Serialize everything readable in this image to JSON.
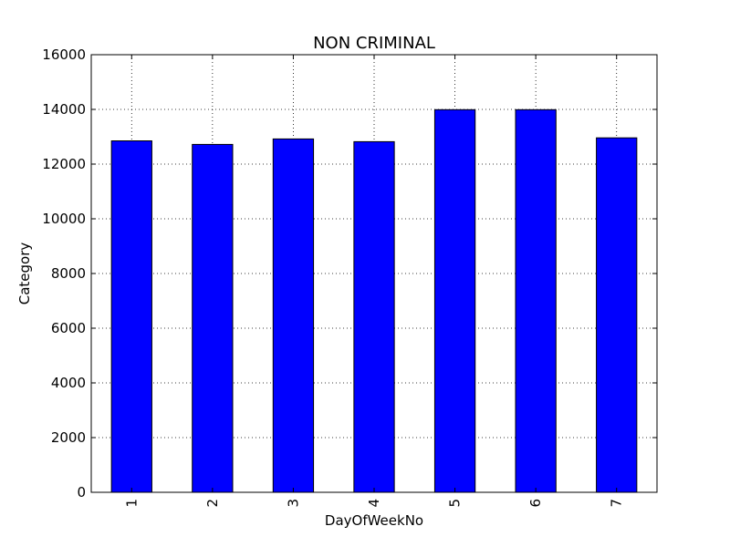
{
  "chart_data": {
    "type": "bar",
    "title": "NON CRIMINAL",
    "xlabel": "DayOfWeekNo",
    "ylabel": "Category",
    "categories": [
      "1",
      "2",
      "3",
      "4",
      "5",
      "6",
      "7"
    ],
    "values": [
      12850,
      12720,
      12920,
      12820,
      13990,
      13990,
      12960
    ],
    "ylim": [
      0,
      16000
    ],
    "yticks": [
      0,
      2000,
      4000,
      6000,
      8000,
      10000,
      12000,
      14000,
      16000
    ],
    "ytick_labels": [
      "0",
      "2000",
      "4000",
      "6000",
      "8000",
      "10000",
      "12000",
      "14000",
      "16000"
    ],
    "xtick_rotation": "vertical",
    "grid": true,
    "grid_style": "dotted",
    "legend": false,
    "bar_color": "#0000ff",
    "edge_color": "#000000"
  }
}
